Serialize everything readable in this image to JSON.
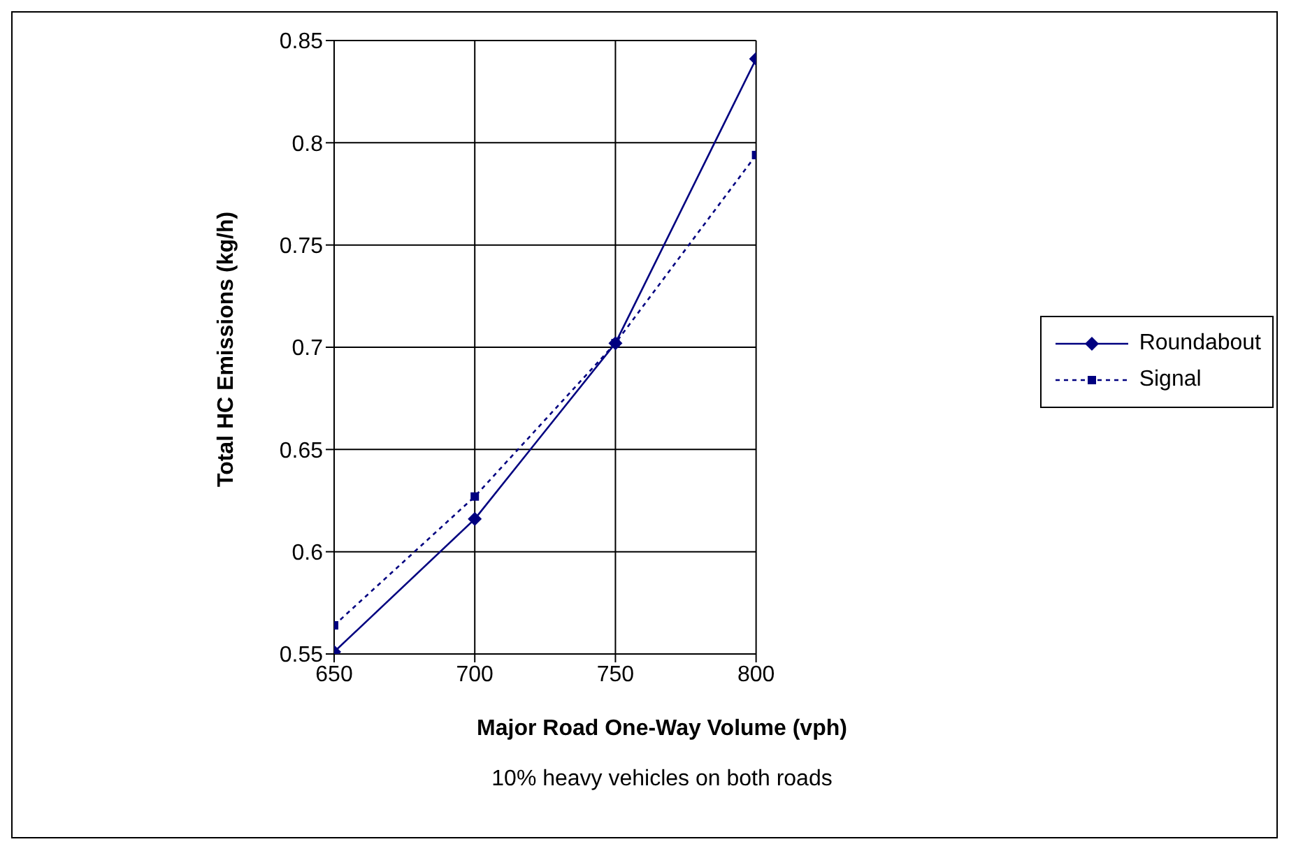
{
  "chart_data": {
    "type": "line",
    "xlabel": "Major Road One-Way Volume (vph)",
    "ylabel": "Total HC Emissions (kg/h)",
    "annotations": [
      "10% heavy vehicles on both roads"
    ],
    "x": [
      650,
      700,
      750,
      800
    ],
    "series": [
      {
        "name": "Roundabout",
        "color": "#000080",
        "values": [
          0.551,
          0.616,
          0.702,
          0.841
        ],
        "marker": "diamond",
        "line_style": "solid"
      },
      {
        "name": "Signal",
        "color": "#000080",
        "values": [
          0.564,
          0.627,
          0.702,
          0.794
        ],
        "marker": "square",
        "line_style": "dotted"
      }
    ],
    "xlim": [
      650,
      800
    ],
    "xticks": [
      650,
      700,
      750,
      800
    ],
    "ylim": [
      0.55,
      0.85
    ],
    "yticks": [
      0.55,
      0.6,
      0.65,
      0.7,
      0.75,
      0.8,
      0.85
    ],
    "grid": true,
    "legend": "right"
  }
}
